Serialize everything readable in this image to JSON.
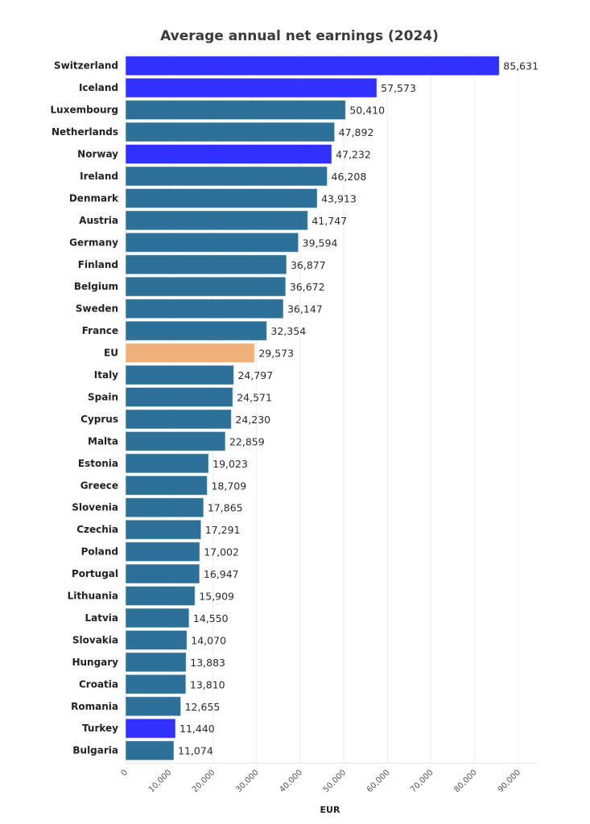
{
  "chart_data": {
    "type": "bar",
    "orientation": "horizontal",
    "title": "Average annual net earnings (2024)",
    "xlabel": "EUR",
    "ylabel": "",
    "xlim": [
      0,
      94000
    ],
    "xticks": [
      0,
      10000,
      20000,
      30000,
      40000,
      50000,
      60000,
      70000,
      80000,
      90000
    ],
    "xtick_labels": [
      "0",
      "10,000",
      "20,000",
      "30,000",
      "40,000",
      "50,000",
      "60,000",
      "70,000",
      "80,000",
      "90,000"
    ],
    "grid": true,
    "legend": "none",
    "colors": {
      "eu_member": "#2e7198",
      "non_eu": "#3030ff",
      "eu_average": "#f0b07a"
    },
    "categories": [
      "Switzerland",
      "Iceland",
      "Luxembourg",
      "Netherlands",
      "Norway",
      "Ireland",
      "Denmark",
      "Austria",
      "Germany",
      "Finland",
      "Belgium",
      "Sweden",
      "France",
      "EU",
      "Italy",
      "Spain",
      "Cyprus",
      "Malta",
      "Estonia",
      "Greece",
      "Slovenia",
      "Czechia",
      "Poland",
      "Portugal",
      "Lithuania",
      "Latvia",
      "Slovakia",
      "Hungary",
      "Croatia",
      "Romania",
      "Turkey",
      "Bulgaria"
    ],
    "values": [
      85631,
      57573,
      50410,
      47892,
      47232,
      46208,
      43913,
      41747,
      39594,
      36877,
      36672,
      36147,
      32354,
      29573,
      24797,
      24571,
      24230,
      22859,
      19023,
      18709,
      17865,
      17291,
      17002,
      16947,
      15909,
      14550,
      14070,
      13883,
      13810,
      12655,
      11440,
      11074
    ],
    "value_labels": [
      "85,631",
      "57,573",
      "50,410",
      "47,892",
      "47,232",
      "46,208",
      "43,913",
      "41,747",
      "39,594",
      "36,877",
      "36,672",
      "36,147",
      "32,354",
      "29,573",
      "24,797",
      "24,571",
      "24,230",
      "22,859",
      "19,023",
      "18,709",
      "17,865",
      "17,291",
      "17,002",
      "16,947",
      "15,909",
      "14,550",
      "14,070",
      "13,883",
      "13,810",
      "12,655",
      "11,440",
      "11,074"
    ],
    "groups": [
      "non_eu",
      "non_eu",
      "eu_member",
      "eu_member",
      "non_eu",
      "eu_member",
      "eu_member",
      "eu_member",
      "eu_member",
      "eu_member",
      "eu_member",
      "eu_member",
      "eu_member",
      "eu_average",
      "eu_member",
      "eu_member",
      "eu_member",
      "eu_member",
      "eu_member",
      "eu_member",
      "eu_member",
      "eu_member",
      "eu_member",
      "eu_member",
      "eu_member",
      "eu_member",
      "eu_member",
      "eu_member",
      "eu_member",
      "eu_member",
      "non_eu",
      "eu_member"
    ]
  }
}
